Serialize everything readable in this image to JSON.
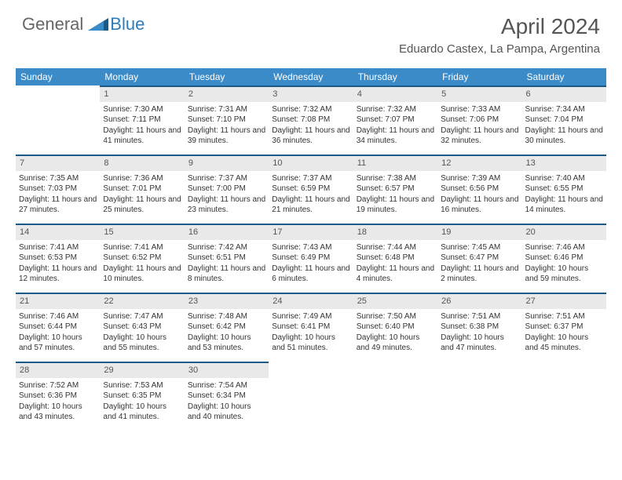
{
  "brand": {
    "text1": "General",
    "text2": "Blue",
    "color_general": "#666666",
    "color_blue": "#2b7bbf"
  },
  "header": {
    "title": "April 2024",
    "location": "Eduardo Castex, La Pampa, Argentina"
  },
  "colors": {
    "header_bg": "#3b8bc8",
    "header_fg": "#ffffff",
    "daynum_bg": "#e9e9e9",
    "daynum_border": "#1a5a8a",
    "text": "#333333"
  },
  "weekdays": [
    "Sunday",
    "Monday",
    "Tuesday",
    "Wednesday",
    "Thursday",
    "Friday",
    "Saturday"
  ],
  "weeks": [
    [
      null,
      {
        "n": "1",
        "sr": "Sunrise: 7:30 AM",
        "ss": "Sunset: 7:11 PM",
        "dl": "Daylight: 11 hours and 41 minutes."
      },
      {
        "n": "2",
        "sr": "Sunrise: 7:31 AM",
        "ss": "Sunset: 7:10 PM",
        "dl": "Daylight: 11 hours and 39 minutes."
      },
      {
        "n": "3",
        "sr": "Sunrise: 7:32 AM",
        "ss": "Sunset: 7:08 PM",
        "dl": "Daylight: 11 hours and 36 minutes."
      },
      {
        "n": "4",
        "sr": "Sunrise: 7:32 AM",
        "ss": "Sunset: 7:07 PM",
        "dl": "Daylight: 11 hours and 34 minutes."
      },
      {
        "n": "5",
        "sr": "Sunrise: 7:33 AM",
        "ss": "Sunset: 7:06 PM",
        "dl": "Daylight: 11 hours and 32 minutes."
      },
      {
        "n": "6",
        "sr": "Sunrise: 7:34 AM",
        "ss": "Sunset: 7:04 PM",
        "dl": "Daylight: 11 hours and 30 minutes."
      }
    ],
    [
      {
        "n": "7",
        "sr": "Sunrise: 7:35 AM",
        "ss": "Sunset: 7:03 PM",
        "dl": "Daylight: 11 hours and 27 minutes."
      },
      {
        "n": "8",
        "sr": "Sunrise: 7:36 AM",
        "ss": "Sunset: 7:01 PM",
        "dl": "Daylight: 11 hours and 25 minutes."
      },
      {
        "n": "9",
        "sr": "Sunrise: 7:37 AM",
        "ss": "Sunset: 7:00 PM",
        "dl": "Daylight: 11 hours and 23 minutes."
      },
      {
        "n": "10",
        "sr": "Sunrise: 7:37 AM",
        "ss": "Sunset: 6:59 PM",
        "dl": "Daylight: 11 hours and 21 minutes."
      },
      {
        "n": "11",
        "sr": "Sunrise: 7:38 AM",
        "ss": "Sunset: 6:57 PM",
        "dl": "Daylight: 11 hours and 19 minutes."
      },
      {
        "n": "12",
        "sr": "Sunrise: 7:39 AM",
        "ss": "Sunset: 6:56 PM",
        "dl": "Daylight: 11 hours and 16 minutes."
      },
      {
        "n": "13",
        "sr": "Sunrise: 7:40 AM",
        "ss": "Sunset: 6:55 PM",
        "dl": "Daylight: 11 hours and 14 minutes."
      }
    ],
    [
      {
        "n": "14",
        "sr": "Sunrise: 7:41 AM",
        "ss": "Sunset: 6:53 PM",
        "dl": "Daylight: 11 hours and 12 minutes."
      },
      {
        "n": "15",
        "sr": "Sunrise: 7:41 AM",
        "ss": "Sunset: 6:52 PM",
        "dl": "Daylight: 11 hours and 10 minutes."
      },
      {
        "n": "16",
        "sr": "Sunrise: 7:42 AM",
        "ss": "Sunset: 6:51 PM",
        "dl": "Daylight: 11 hours and 8 minutes."
      },
      {
        "n": "17",
        "sr": "Sunrise: 7:43 AM",
        "ss": "Sunset: 6:49 PM",
        "dl": "Daylight: 11 hours and 6 minutes."
      },
      {
        "n": "18",
        "sr": "Sunrise: 7:44 AM",
        "ss": "Sunset: 6:48 PM",
        "dl": "Daylight: 11 hours and 4 minutes."
      },
      {
        "n": "19",
        "sr": "Sunrise: 7:45 AM",
        "ss": "Sunset: 6:47 PM",
        "dl": "Daylight: 11 hours and 2 minutes."
      },
      {
        "n": "20",
        "sr": "Sunrise: 7:46 AM",
        "ss": "Sunset: 6:46 PM",
        "dl": "Daylight: 10 hours and 59 minutes."
      }
    ],
    [
      {
        "n": "21",
        "sr": "Sunrise: 7:46 AM",
        "ss": "Sunset: 6:44 PM",
        "dl": "Daylight: 10 hours and 57 minutes."
      },
      {
        "n": "22",
        "sr": "Sunrise: 7:47 AM",
        "ss": "Sunset: 6:43 PM",
        "dl": "Daylight: 10 hours and 55 minutes."
      },
      {
        "n": "23",
        "sr": "Sunrise: 7:48 AM",
        "ss": "Sunset: 6:42 PM",
        "dl": "Daylight: 10 hours and 53 minutes."
      },
      {
        "n": "24",
        "sr": "Sunrise: 7:49 AM",
        "ss": "Sunset: 6:41 PM",
        "dl": "Daylight: 10 hours and 51 minutes."
      },
      {
        "n": "25",
        "sr": "Sunrise: 7:50 AM",
        "ss": "Sunset: 6:40 PM",
        "dl": "Daylight: 10 hours and 49 minutes."
      },
      {
        "n": "26",
        "sr": "Sunrise: 7:51 AM",
        "ss": "Sunset: 6:38 PM",
        "dl": "Daylight: 10 hours and 47 minutes."
      },
      {
        "n": "27",
        "sr": "Sunrise: 7:51 AM",
        "ss": "Sunset: 6:37 PM",
        "dl": "Daylight: 10 hours and 45 minutes."
      }
    ],
    [
      {
        "n": "28",
        "sr": "Sunrise: 7:52 AM",
        "ss": "Sunset: 6:36 PM",
        "dl": "Daylight: 10 hours and 43 minutes."
      },
      {
        "n": "29",
        "sr": "Sunrise: 7:53 AM",
        "ss": "Sunset: 6:35 PM",
        "dl": "Daylight: 10 hours and 41 minutes."
      },
      {
        "n": "30",
        "sr": "Sunrise: 7:54 AM",
        "ss": "Sunset: 6:34 PM",
        "dl": "Daylight: 10 hours and 40 minutes."
      },
      null,
      null,
      null,
      null
    ]
  ]
}
